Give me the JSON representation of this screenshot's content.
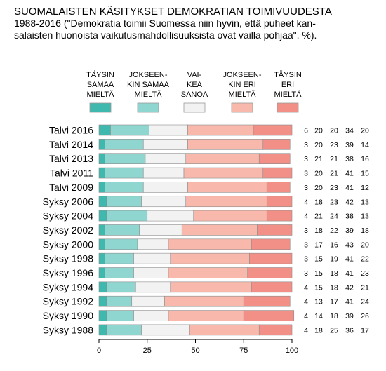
{
  "title": "SUOMALAISTEN KÄSITYKSET DEMOKRATIAN TOIMIVUUDESTA",
  "subtitle_lines": [
    "1988-2016 (\"Demokratia toimii Suomessa niin hyvin, että puheet kan-",
    "salaisten huonoista vaikutusmahdollisuuksista ovat vailla pohjaa\", %)."
  ],
  "chart_data": {
    "type": "bar",
    "orientation": "horizontal",
    "stacked": true,
    "categories": [
      "Talvi 2016",
      "Talvi 2014",
      "Talvi 2013",
      "Talvi 2011",
      "Talvi 2009",
      "Syksy 2006",
      "Syksy 2004",
      "Syksy 2002",
      "Syksy 2000",
      "Syksy 1998",
      "Syksy 1996",
      "Syksy 1994",
      "Syksy 1992",
      "Syksy 1990",
      "Syksy 1988"
    ],
    "series": [
      {
        "name_lines": [
          "TÄYSIN",
          "SAMAA",
          "MIELTÄ"
        ],
        "color": "#3fb8ad",
        "values": [
          6,
          3,
          3,
          3,
          3,
          4,
          4,
          3,
          3,
          3,
          3,
          4,
          4,
          4,
          4
        ]
      },
      {
        "name_lines": [
          "JOKSEEN-",
          "KIN SAMAA",
          "MIELTÄ"
        ],
        "color": "#8fd6d0",
        "values": [
          20,
          20,
          21,
          20,
          20,
          18,
          21,
          18,
          17,
          15,
          15,
          15,
          13,
          14,
          18
        ]
      },
      {
        "name_lines": [
          "VAI-",
          "KEA",
          "SANOA"
        ],
        "color": "#f2f2f2",
        "values": [
          20,
          23,
          21,
          21,
          23,
          23,
          24,
          22,
          16,
          19,
          18,
          18,
          17,
          18,
          25
        ]
      },
      {
        "name_lines": [
          "JOKSEEN-",
          "KIN ERI",
          "MIELTÄ"
        ],
        "color": "#f9b8ac",
        "values": [
          34,
          39,
          38,
          41,
          41,
          42,
          38,
          39,
          43,
          41,
          41,
          42,
          41,
          39,
          36
        ]
      },
      {
        "name_lines": [
          "TÄYSIN",
          "ERI",
          "MIELTÄ"
        ],
        "color": "#f28f86",
        "values": [
          20,
          14,
          16,
          15,
          12,
          13,
          13,
          18,
          20,
          22,
          23,
          21,
          24,
          26,
          17
        ]
      }
    ],
    "xlim": [
      0,
      100
    ],
    "xticks": [
      "0",
      "25",
      "50",
      "75",
      "100"
    ],
    "grid": false,
    "legend": "top"
  }
}
